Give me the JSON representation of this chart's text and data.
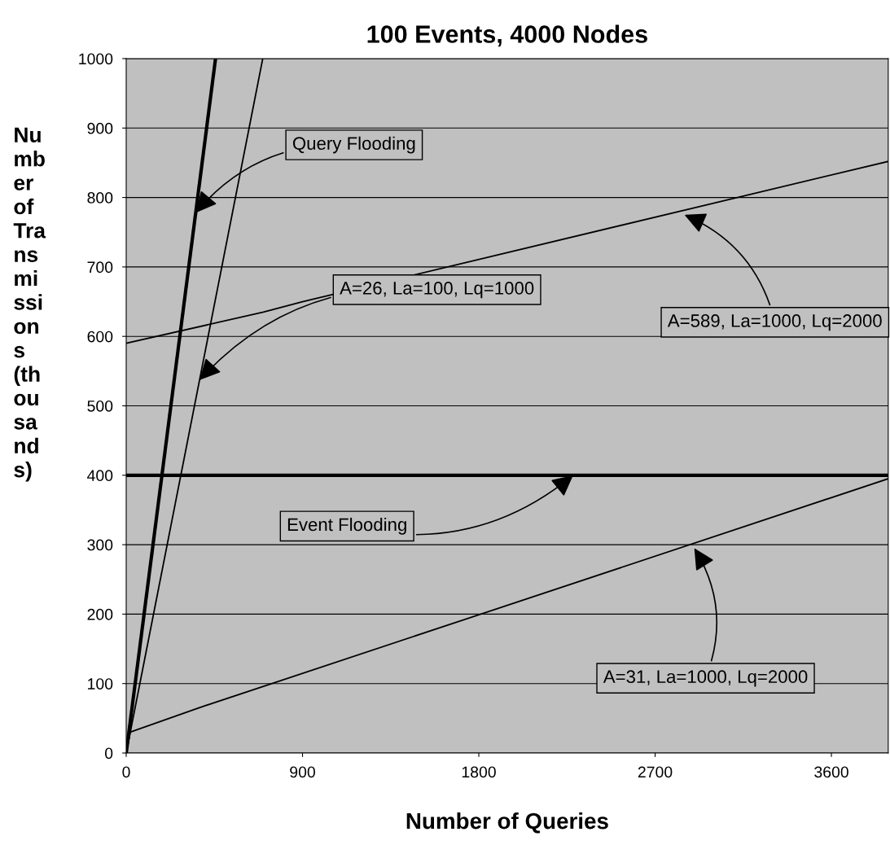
{
  "chart_data": {
    "type": "line",
    "title": "100 Events, 4000 Nodes",
    "xlabel": "Number of Queries",
    "ylabel": "Nu\nmb\ner\nof\nTra\nns\nmi\nssi\non\ns\n(th\nou\nsa\nnd\ns)",
    "series": [
      {
        "color": "#000000",
        "x": [
          0,
          456
        ],
        "values": [
          0,
          1000
        ]
      },
      {
        "color": "#000000",
        "x": [
          0,
          697
        ],
        "values": [
          0,
          1000
        ]
      },
      {
        "color": "#000000",
        "x": [
          0,
          700,
          900,
          3890
        ],
        "values": [
          590,
          635,
          650,
          852
        ]
      },
      {
        "color": "#000000",
        "x": [
          0,
          20,
          370,
          3890
        ],
        "values": [
          0,
          30,
          65,
          395
        ]
      }
    ],
    "xlim": [
      0,
      3890
    ],
    "ylim": [
      0,
      1000
    ],
    "xticks": [
      0,
      900,
      1800,
      2700,
      3600
    ],
    "yticks": [
      0,
      100,
      200,
      300,
      400,
      500,
      600,
      700,
      800,
      900,
      1000
    ],
    "ref_lines": [
      {
        "axis": "y",
        "value": 400,
        "color": "#000000"
      }
    ],
    "grid": "y",
    "legend": false,
    "marker": "none",
    "line_style": "solid",
    "annotations": [
      {
        "text": "Query Flooding",
        "x": 355,
        "y": 778
      },
      {
        "text": "A=26, La=100, Lq=1000",
        "x": 374,
        "y": 537
      },
      {
        "text": "A=589, La=1000, Lq=2000",
        "x": 2850,
        "y": 775
      },
      {
        "text": "Event Flooding",
        "x": 2282,
        "y": 400
      },
      {
        "text": "A=31, La=1000, Lq=2000",
        "x": 2900,
        "y": 295
      }
    ]
  }
}
